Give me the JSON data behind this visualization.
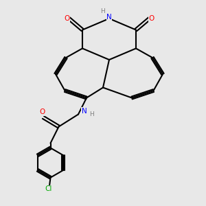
{
  "background_color": "#e8e8e8",
  "figsize": [
    3.0,
    3.0
  ],
  "dpi": 100,
  "bond_color": "#000000",
  "bond_width": 1.5,
  "atom_colors": {
    "O": "#ff0000",
    "N": "#0000ff",
    "Cl": "#00aa00",
    "C": "#000000",
    "H": "#808080"
  }
}
